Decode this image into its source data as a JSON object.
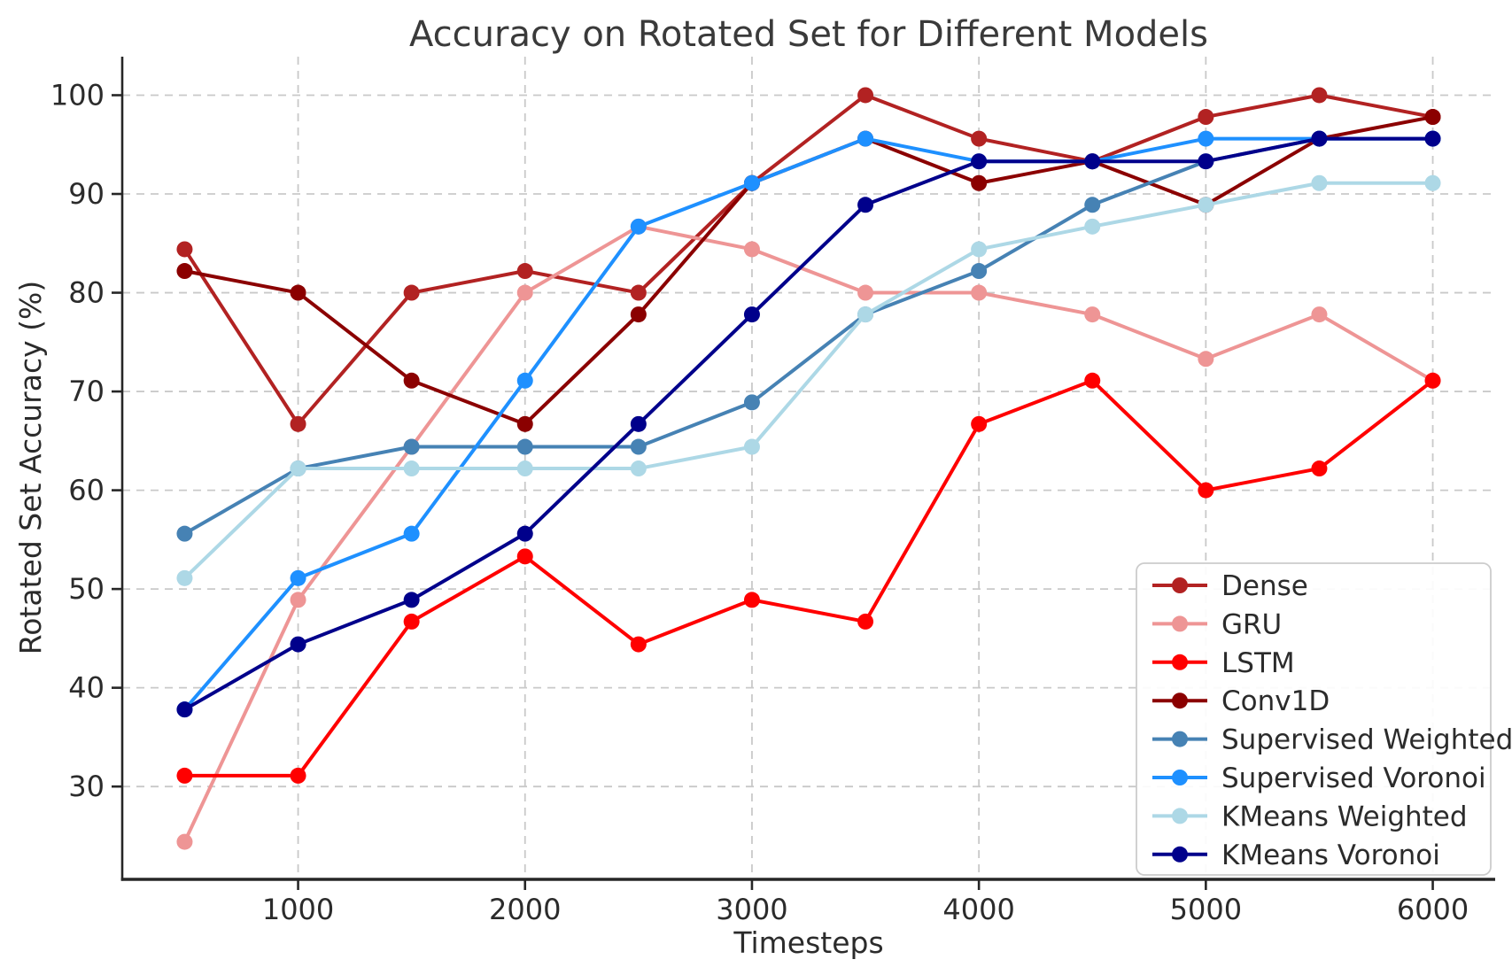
{
  "figure": {
    "background": "#ffffff",
    "title": "Accuracy on Rotated Set for Different Models",
    "xlabel": "Timesteps",
    "ylabel": "Rotated Set Accuracy (%)"
  },
  "style": {
    "grid_color": "#c9c9c9",
    "spine_color": "#262626",
    "text_color": "#2b2b2b",
    "title_color": "#3a3a3a",
    "legend_border_color": "#cccccc",
    "legend_background": "#ffffff"
  },
  "chart_data": {
    "type": "line",
    "title": "Accuracy on Rotated Set for Different Models",
    "xlabel": "Timesteps",
    "ylabel": "Rotated Set Accuracy (%)",
    "grid": true,
    "legend_position": "lower right",
    "x": [
      500,
      1000,
      1500,
      2000,
      2500,
      3000,
      3500,
      4000,
      4500,
      5000,
      5500,
      6000
    ],
    "x_ticks": [
      1000,
      2000,
      3000,
      4000,
      5000,
      6000
    ],
    "y_ticks": [
      30,
      40,
      50,
      60,
      70,
      80,
      90,
      100
    ],
    "xlim": [
      225,
      6275
    ],
    "ylim": [
      20.6,
      103.9
    ],
    "series": [
      {
        "name": "Dense",
        "color": "#b22222",
        "values": [
          84.4,
          66.7,
          80.0,
          82.2,
          80.0,
          91.1,
          100.0,
          95.6,
          93.3,
          97.8,
          100.0,
          97.8
        ]
      },
      {
        "name": "GRU",
        "color": "#ee9595",
        "values": [
          24.4,
          48.9,
          64.4,
          80.0,
          86.7,
          84.4,
          80.0,
          80.0,
          77.8,
          73.3,
          77.8,
          71.1
        ]
      },
      {
        "name": "LSTM",
        "color": "#ff0000",
        "values": [
          31.1,
          31.1,
          46.7,
          53.3,
          44.4,
          48.9,
          46.7,
          66.7,
          71.1,
          60.0,
          62.2,
          71.1
        ]
      },
      {
        "name": "Conv1D",
        "color": "#8b0000",
        "values": [
          82.2,
          80.0,
          71.1,
          66.7,
          77.8,
          91.1,
          95.6,
          91.1,
          93.3,
          88.9,
          95.6,
          97.8
        ]
      },
      {
        "name": "Supervised Weighted",
        "color": "#4682b4",
        "values": [
          55.6,
          62.2,
          64.4,
          64.4,
          64.4,
          68.9,
          77.8,
          82.2,
          88.9,
          93.3,
          95.6,
          95.6
        ]
      },
      {
        "name": "Supervised Voronoi",
        "color": "#1e90ff",
        "values": [
          37.8,
          51.1,
          55.6,
          71.1,
          86.7,
          91.1,
          95.6,
          93.3,
          93.3,
          95.6,
          95.6,
          95.6
        ]
      },
      {
        "name": "KMeans Weighted",
        "color": "#add8e6",
        "values": [
          51.1,
          62.2,
          62.2,
          62.2,
          62.2,
          64.4,
          77.8,
          84.4,
          86.7,
          88.9,
          91.1,
          91.1
        ]
      },
      {
        "name": "KMeans Voronoi",
        "color": "#00008b",
        "values": [
          37.8,
          44.4,
          48.9,
          55.6,
          66.7,
          77.8,
          88.9,
          93.3,
          93.3,
          93.3,
          95.6,
          95.6
        ]
      }
    ]
  }
}
